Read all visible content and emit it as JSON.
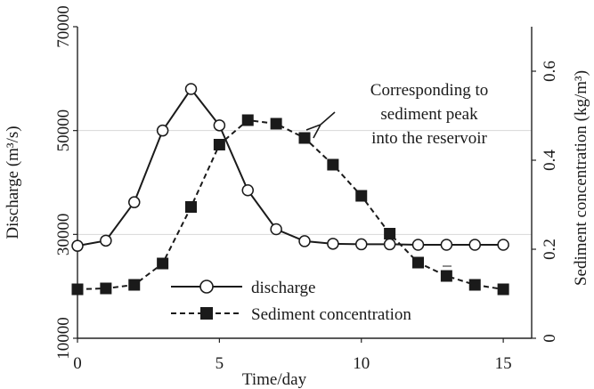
{
  "chart_data": {
    "type": "line",
    "xlabel": "Time/day",
    "ylabel_left": "Discharge (m³/s)",
    "ylabel_right": "Sediment concentration (kg/m³)",
    "xlim": [
      0,
      16
    ],
    "ylim_left": [
      10000,
      70000
    ],
    "ylim_right": [
      0,
      0.7
    ],
    "x_ticks": [
      "0",
      "5",
      "10",
      "15"
    ],
    "x_tick_values": [
      0,
      5,
      10,
      15
    ],
    "y_left_ticks": [
      "10000",
      "30000",
      "50000",
      "70000"
    ],
    "y_left_tick_values": [
      10000,
      30000,
      50000,
      70000
    ],
    "y_right_ticks": [
      "0",
      "0.2",
      "0.4",
      "0.6"
    ],
    "y_right_tick_values": [
      0,
      0.2,
      0.4,
      0.6
    ],
    "grid": "horizontal",
    "legend_position": "bottom-left",
    "series": [
      {
        "name": "discharge",
        "axis": "left",
        "marker": "open-circle",
        "line": "solid",
        "x": [
          0,
          1,
          2,
          3,
          4,
          5,
          6,
          7,
          8,
          9,
          10,
          11,
          12,
          13,
          14,
          15
        ],
        "values": [
          27800,
          28800,
          36200,
          50000,
          58000,
          51000,
          38500,
          31000,
          28700,
          28200,
          28100,
          28100,
          28000,
          28000,
          28000,
          28000
        ]
      },
      {
        "name": "Sediment concentration",
        "axis": "right",
        "marker": "filled-square",
        "line": "dashed",
        "x": [
          0,
          1,
          2,
          3,
          4,
          5,
          6,
          7,
          8,
          9,
          10,
          11,
          12,
          13,
          14,
          15
        ],
        "values": [
          0.11,
          0.112,
          0.12,
          0.168,
          0.295,
          0.435,
          0.49,
          0.482,
          0.45,
          0.39,
          0.32,
          0.235,
          0.17,
          0.14,
          0.12,
          0.11
        ]
      }
    ],
    "annotation": {
      "lines": [
        "Corresponding to",
        "sediment peak",
        "into the reservoir"
      ]
    }
  }
}
